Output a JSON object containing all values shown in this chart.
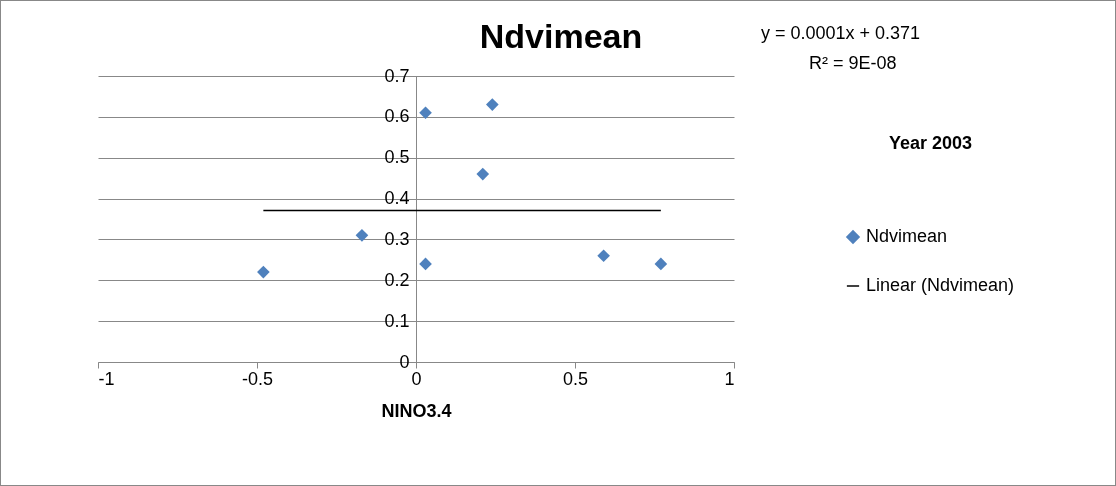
{
  "chart_data": {
    "type": "scatter",
    "title": "Ndvimean",
    "xlabel": "NINO3.4",
    "series": [
      {
        "name": "Ndvimean",
        "color": "#4f81bd",
        "marker": "diamond",
        "x": [
          -0.48,
          -0.17,
          0.03,
          0.03,
          0.24,
          0.21,
          0.59,
          0.77
        ],
        "values": [
          0.22,
          0.31,
          0.61,
          0.24,
          0.63,
          0.46,
          0.26,
          0.24
        ]
      },
      {
        "name": "Linear (Ndvimean)",
        "type": "line",
        "color": "#000000",
        "x": [
          -0.48,
          0.77
        ],
        "values": [
          0.371,
          0.371
        ]
      }
    ],
    "annotations": [
      "y = 0.0001x + 0.371",
      "R² = 9E-08",
      "Year 2003"
    ],
    "xlim": [
      -1,
      1
    ],
    "xticks": [
      -1,
      -0.5,
      0,
      0.5,
      1
    ],
    "ylim": [
      0,
      0.7
    ],
    "yticks": [
      0,
      0.1,
      0.2,
      0.3,
      0.4,
      0.5,
      0.6,
      0.7
    ],
    "grid": "y",
    "legend": "right"
  }
}
